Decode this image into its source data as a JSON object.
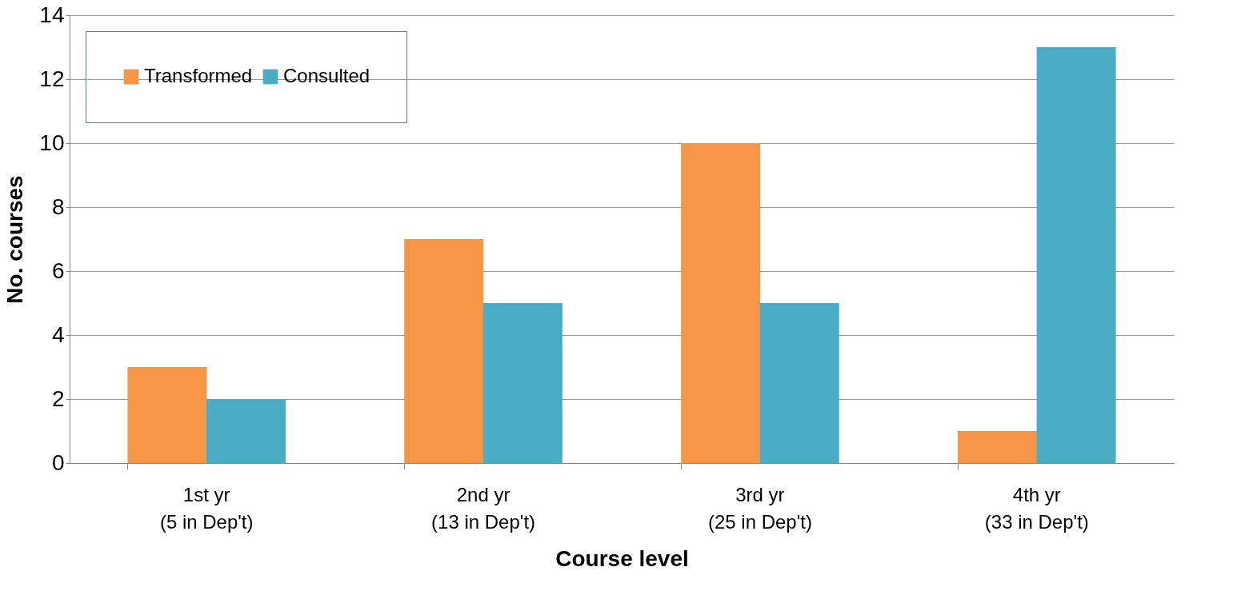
{
  "chart_data": {
    "type": "bar",
    "xlabel": "Course level",
    "ylabel": "No. courses",
    "categories": [
      "1st yr\n(5 in Dep't)",
      "2nd yr\n(13 in Dep't)",
      "3rd yr\n(25 in Dep't)",
      "4th yr\n(33 in Dep't)"
    ],
    "series": [
      {
        "name": "Transformed",
        "color": "#f79646",
        "values": [
          3,
          7,
          10,
          1
        ]
      },
      {
        "name": "Consulted",
        "color": "#4bacc6",
        "values": [
          2,
          5,
          5,
          13
        ]
      }
    ],
    "ylim": [
      0,
      14
    ],
    "yticks": [
      0,
      2,
      4,
      6,
      8,
      10,
      12,
      14
    ],
    "grid": "y",
    "legend": "top left"
  }
}
